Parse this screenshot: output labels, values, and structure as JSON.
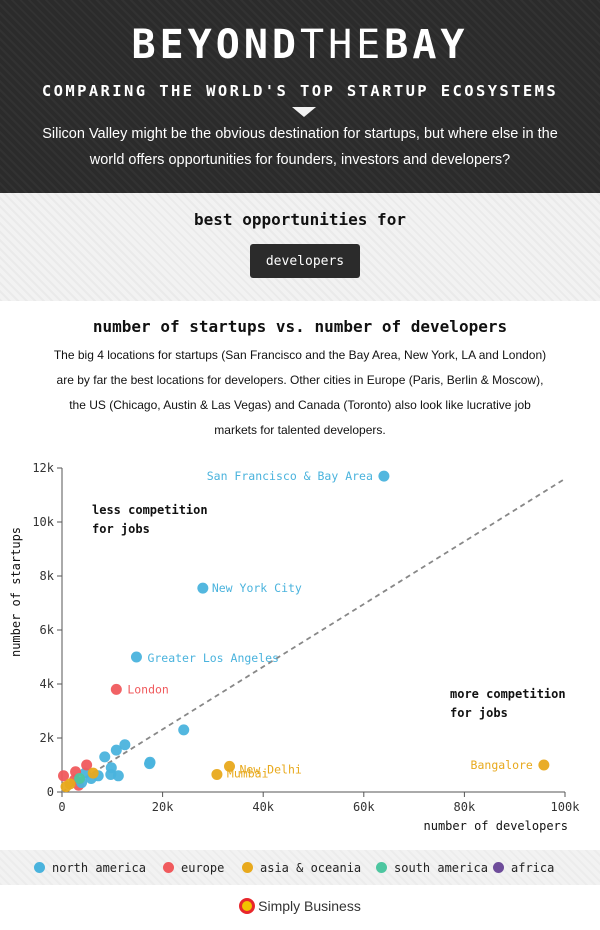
{
  "header": {
    "title_bold_1": "BEYOND",
    "title_thin": "THE",
    "title_bold_2": "BAY",
    "subtitle": "COMPARING THE WORLD'S TOP STARTUP ECOSYSTEMS",
    "intro": "Silicon Valley might be the obvious destination for startups, but where else in the world offers opportunities for founders, investors and developers?"
  },
  "filter": {
    "label": "best opportunities for",
    "selected": "developers"
  },
  "chart_section": {
    "title": "number of startups vs. number of developers",
    "description": "The big 4 locations for startups (San Francisco and the Bay Area, New York, LA and London) are by far the best locations for developers. Other cities in Europe (Paris, Berlin & Moscow), the US (Chicago, Austin & Las Vegas) and Canada (Toronto) also look like lucrative job markets for talented developers."
  },
  "chart_data": {
    "type": "scatter",
    "xlabel": "number of developers",
    "ylabel": "number of startups",
    "xlim": [
      0,
      100000
    ],
    "ylim": [
      0,
      12000
    ],
    "x_ticks": [
      0,
      20000,
      40000,
      60000,
      80000,
      100000
    ],
    "x_tick_labels": [
      "0",
      "20k",
      "40k",
      "60k",
      "80k",
      "100k"
    ],
    "y_ticks": [
      0,
      2000,
      4000,
      6000,
      8000,
      10000,
      12000
    ],
    "y_tick_labels": [
      "0",
      "2k",
      "4k",
      "6k",
      "8k",
      "10k",
      "12k"
    ],
    "trend_line": {
      "from": [
        0,
        0
      ],
      "to": [
        100000,
        11600
      ]
    },
    "annotations": [
      {
        "lines": [
          "less competition",
          "for jobs"
        ]
      },
      {
        "lines": [
          "more competition",
          "for jobs"
        ]
      }
    ],
    "colors": {
      "north america": "#4ab3dd",
      "europe": "#f05a5d",
      "asia & oceania": "#e8a91c",
      "south america": "#4dc6a0",
      "africa": "#6e4c9a"
    },
    "points": [
      {
        "label": "San Francisco & Bay Area",
        "x": 64000,
        "y": 11700,
        "region": "north america"
      },
      {
        "label": "New York City",
        "x": 28000,
        "y": 7550,
        "region": "north america"
      },
      {
        "label": "Greater Los Angeles",
        "x": 14800,
        "y": 5000,
        "region": "north america"
      },
      {
        "label": "London",
        "x": 10800,
        "y": 3800,
        "region": "europe"
      },
      {
        "label": "Bangalore",
        "x": 95800,
        "y": 1000,
        "region": "asia & oceania"
      },
      {
        "label": "New Delhi",
        "x": 33300,
        "y": 950,
        "region": "asia & oceania"
      },
      {
        "label": "Mumbai",
        "x": 30800,
        "y": 650,
        "region": "asia & oceania"
      },
      {
        "label": "",
        "x": 24200,
        "y": 2300,
        "region": "north america"
      },
      {
        "label": "",
        "x": 17500,
        "y": 1100,
        "region": "north america"
      },
      {
        "label": "",
        "x": 17400,
        "y": 1050,
        "region": "north america"
      },
      {
        "label": "",
        "x": 12500,
        "y": 1750,
        "region": "north america"
      },
      {
        "label": "",
        "x": 10800,
        "y": 1550,
        "region": "north america"
      },
      {
        "label": "",
        "x": 8500,
        "y": 1300,
        "region": "north america"
      },
      {
        "label": "",
        "x": 9800,
        "y": 900,
        "region": "north america"
      },
      {
        "label": "",
        "x": 11200,
        "y": 600,
        "region": "north america"
      },
      {
        "label": "",
        "x": 9700,
        "y": 650,
        "region": "north america"
      },
      {
        "label": "",
        "x": 7200,
        "y": 600,
        "region": "north america"
      },
      {
        "label": "",
        "x": 5800,
        "y": 500,
        "region": "north america"
      },
      {
        "label": "",
        "x": 4600,
        "y": 700,
        "region": "north america"
      },
      {
        "label": "",
        "x": 4900,
        "y": 1000,
        "region": "europe"
      },
      {
        "label": "",
        "x": 2700,
        "y": 750,
        "region": "europe"
      },
      {
        "label": "",
        "x": 2500,
        "y": 450,
        "region": "europe"
      },
      {
        "label": "",
        "x": 3300,
        "y": 250,
        "region": "europe"
      },
      {
        "label": "",
        "x": 300,
        "y": 600,
        "region": "europe"
      },
      {
        "label": "",
        "x": 6200,
        "y": 700,
        "region": "asia & oceania"
      },
      {
        "label": "",
        "x": 3900,
        "y": 350,
        "region": "north america"
      },
      {
        "label": "",
        "x": 1600,
        "y": 300,
        "region": "asia & oceania"
      },
      {
        "label": "",
        "x": 800,
        "y": 200,
        "region": "asia & oceania"
      },
      {
        "label": "",
        "x": 3500,
        "y": 500,
        "region": "south america"
      }
    ]
  },
  "legend": [
    {
      "label": "north america",
      "color": "#4ab3dd"
    },
    {
      "label": "europe",
      "color": "#f05a5d"
    },
    {
      "label": "asia & oceania",
      "color": "#e8a91c"
    },
    {
      "label": "south america",
      "color": "#4dc6a0"
    },
    {
      "label": "africa",
      "color": "#6e4c9a"
    }
  ],
  "brand": {
    "name": "Simply Business"
  }
}
